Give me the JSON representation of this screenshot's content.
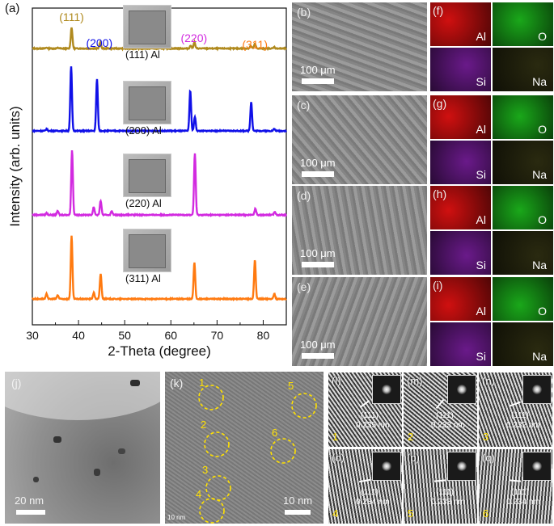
{
  "chart_data": {
    "type": "line",
    "panel_label": "(a)",
    "xlabel": "2-Theta (degree)",
    "ylabel": "Intensity (arb. units)",
    "xlim": [
      30,
      85
    ],
    "xticks": [
      "30",
      "40",
      "50",
      "60",
      "70",
      "80"
    ],
    "series": [
      {
        "name": "(111) Al",
        "color": "#b08a1e",
        "peaks": [
          {
            "x": 38.5,
            "h": 1.0
          },
          {
            "x": 44.7,
            "h": 0.28
          },
          {
            "x": 64.3,
            "h": 0.14
          },
          {
            "x": 65.1,
            "h": 0.3
          },
          {
            "x": 77.3,
            "h": 0.12
          },
          {
            "x": 78.2,
            "h": 0.22
          },
          {
            "x": 82.4,
            "h": 0.06
          },
          {
            "x": 33.1,
            "h": 0.04
          },
          {
            "x": 35.6,
            "h": 0.03
          }
        ]
      },
      {
        "name": "(200) Al",
        "color": "#1010e8",
        "peaks": [
          {
            "x": 38.4,
            "h": 1.0
          },
          {
            "x": 44.0,
            "h": 0.8
          },
          {
            "x": 64.2,
            "h": 0.62
          },
          {
            "x": 65.2,
            "h": 0.22
          },
          {
            "x": 77.4,
            "h": 0.45
          },
          {
            "x": 33.1,
            "h": 0.03
          },
          {
            "x": 82.4,
            "h": 0.03
          }
        ]
      },
      {
        "name": "(220) Al",
        "color": "#d22ae0",
        "peaks": [
          {
            "x": 38.6,
            "h": 1.0
          },
          {
            "x": 43.3,
            "h": 0.12
          },
          {
            "x": 44.8,
            "h": 0.22
          },
          {
            "x": 47.2,
            "h": 0.06
          },
          {
            "x": 65.2,
            "h": 0.95
          },
          {
            "x": 78.3,
            "h": 0.1
          },
          {
            "x": 82.5,
            "h": 0.05
          },
          {
            "x": 33.1,
            "h": 0.03
          },
          {
            "x": 35.5,
            "h": 0.06
          }
        ]
      },
      {
        "name": "(311) Al",
        "color": "#ff7a10",
        "peaks": [
          {
            "x": 38.5,
            "h": 1.0
          },
          {
            "x": 43.3,
            "h": 0.1
          },
          {
            "x": 44.8,
            "h": 0.4
          },
          {
            "x": 65.1,
            "h": 0.58
          },
          {
            "x": 78.2,
            "h": 0.62
          },
          {
            "x": 82.4,
            "h": 0.08
          },
          {
            "x": 33.1,
            "h": 0.08
          },
          {
            "x": 35.5,
            "h": 0.06
          }
        ]
      }
    ],
    "annotations": [
      {
        "text": "(111)",
        "color": "#b08a1e",
        "x": 38.5
      },
      {
        "text": "(200)",
        "color": "#1010e8",
        "x": 44.5
      },
      {
        "text": "(220)",
        "color": "#d22ae0",
        "x": 65.0
      },
      {
        "text": "(311)",
        "color": "#ff7a10",
        "x": 78.2
      }
    ]
  },
  "sem_panels": [
    {
      "label": "(b)",
      "scale": "100 μm"
    },
    {
      "label": "(c)",
      "scale": "100 μm"
    },
    {
      "label": "(d)",
      "scale": "100 μm"
    },
    {
      "label": "(e)",
      "scale": "100 μm"
    }
  ],
  "map_panels": [
    {
      "label": "(f)",
      "al": "Al",
      "o": "O",
      "si": "Si",
      "na": "Na"
    },
    {
      "label": "(g)",
      "al": "Al",
      "o": "O",
      "si": "Si",
      "na": "Na"
    },
    {
      "label": "(h)",
      "al": "Al",
      "o": "O",
      "si": "Si",
      "na": "Na"
    },
    {
      "label": "(i)",
      "al": "Al",
      "o": "O",
      "si": "Si",
      "na": "Na"
    }
  ],
  "tem": {
    "j_label": "(j)",
    "j_scale": "20 nm",
    "k_label": "(k)",
    "k_scale": "10 nm",
    "k_small": "10 nm",
    "circles": [
      "1",
      "2",
      "3",
      "4",
      "5",
      "6"
    ]
  },
  "hrtem": [
    {
      "label": "(l)",
      "plane": "(111)",
      "d": "0.235 nm",
      "num": "1"
    },
    {
      "label": "(m)",
      "plane": "(111)",
      "d": "0.233 nm",
      "num": "2"
    },
    {
      "label": "(n)",
      "plane": "(111)",
      "d": "0.232 nm",
      "num": "3"
    },
    {
      "label": "(o)",
      "plane": "(111)",
      "d": "0.234 nm",
      "num": "4"
    },
    {
      "label": "(p)",
      "plane": "(111)",
      "d": "0.233 nm",
      "num": "5"
    },
    {
      "label": "(q)",
      "plane": "(111)",
      "d": "0.234 nm",
      "num": "6"
    }
  ],
  "colors": {
    "al_map": "#d01010",
    "o_map": "#1aa81a",
    "si_map": "#6a1a8a",
    "na_map": "#2a2a10"
  }
}
